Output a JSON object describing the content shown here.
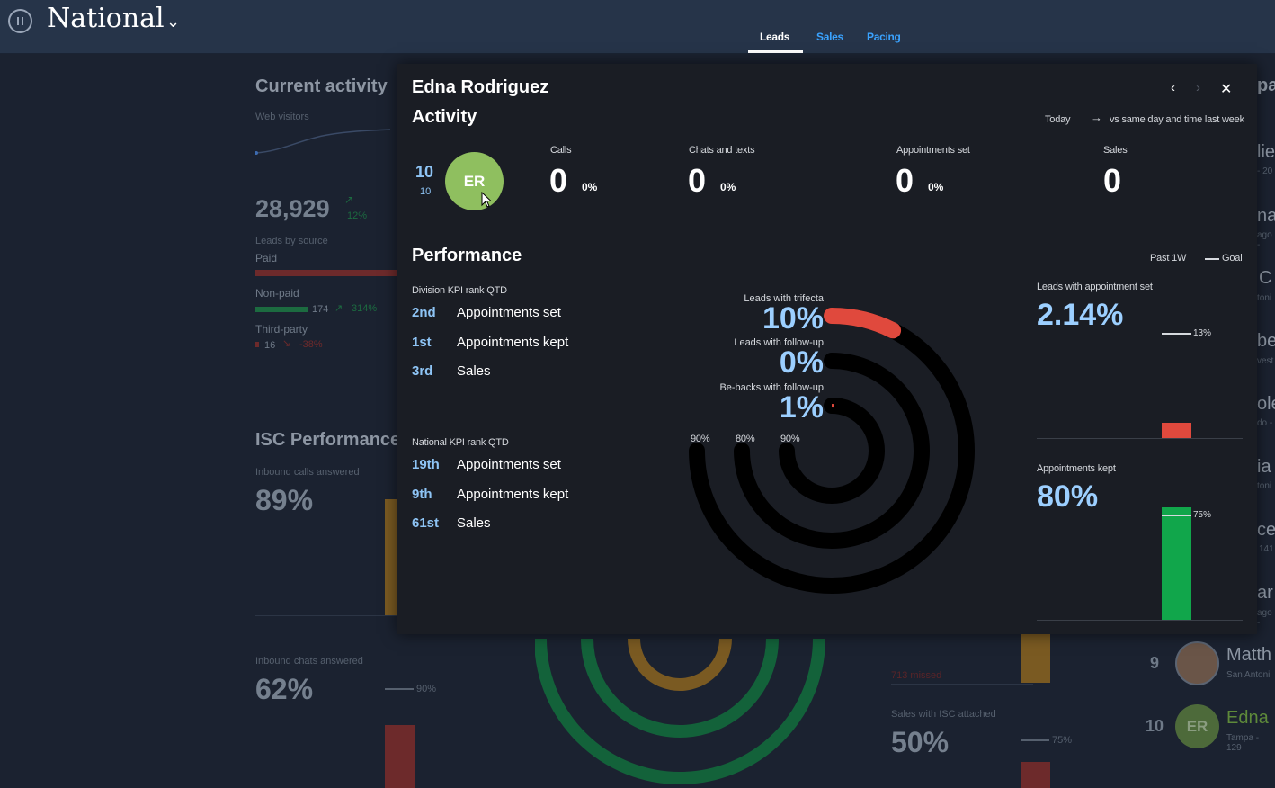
{
  "header": {
    "region": "National",
    "tabs": [
      {
        "label": "Leads",
        "active": true
      },
      {
        "label": "Sales",
        "active": false
      },
      {
        "label": "Pacing",
        "active": false
      }
    ]
  },
  "background": {
    "current_activity_title": "Current activity",
    "web_visitors_label": "Web visitors",
    "web_visitors_value": "28,929",
    "web_visitors_change": "12%",
    "leads_by_source_label": "Leads by source",
    "sources": [
      {
        "name": "Paid",
        "value": "",
        "change": ""
      },
      {
        "name": "Non-paid",
        "value": "174",
        "change": "314%"
      },
      {
        "name": "Third-party",
        "value": "16",
        "change": "-38%"
      }
    ],
    "isc_title": "ISC Performance",
    "inbound_calls_label": "Inbound calls answered",
    "inbound_calls_value": "89%",
    "inbound_chats_label": "Inbound chats answered",
    "inbound_chats_value": "62%",
    "inbound_chats_goal": "90%",
    "missed_label": "713 missed",
    "sales_isc_label": "Sales with ISC attached",
    "sales_isc_value": "50%",
    "sales_isc_goal": "75%",
    "right_fragments": [
      "pa",
      "lie",
      "- 20",
      "na",
      "ago -",
      "C",
      "toni",
      "be",
      "vest",
      "ole",
      "do -",
      "ia",
      "toni",
      "cee",
      "141",
      "ar",
      "ago -"
    ],
    "leaderboard": [
      {
        "rank": "9",
        "name": "Matth",
        "sub": "San Antoni",
        "initials": ""
      },
      {
        "rank": "10",
        "name": "Edna",
        "sub": "Tampa - 129",
        "initials": "ER"
      }
    ]
  },
  "modal": {
    "person_name": "Edna Rodriguez",
    "activity_title": "Activity",
    "today_label": "Today",
    "compare_label": "vs same day and time last week",
    "rank": "10",
    "rank_sub": "10",
    "initials": "ER",
    "avatar_color": "#8fbf5f",
    "metrics": [
      {
        "label": "Calls",
        "value": "0",
        "pct": "0%"
      },
      {
        "label": "Chats and texts",
        "value": "0",
        "pct": "0%"
      },
      {
        "label": "Appointments set",
        "value": "0",
        "pct": "0%"
      },
      {
        "label": "Sales",
        "value": "0",
        "pct": ""
      }
    ],
    "performance_title": "Performance",
    "legend_past": "Past 1W",
    "legend_goal": "Goal",
    "division_label": "Division KPI rank QTD",
    "division_ranks": [
      {
        "rank": "2nd",
        "name": "Appointments set"
      },
      {
        "rank": "1st",
        "name": "Appointments kept"
      },
      {
        "rank": "3rd",
        "name": "Sales"
      }
    ],
    "national_label": "National KPI rank QTD",
    "national_ranks": [
      {
        "rank": "19th",
        "name": "Appointments set"
      },
      {
        "rank": "9th",
        "name": "Appointments kept"
      },
      {
        "rank": "61st",
        "name": "Sales"
      }
    ],
    "rings": [
      {
        "label": "Leads with trifecta",
        "value": "10%",
        "fraction": 0.1,
        "goal": "90%",
        "color": "#e0493d"
      },
      {
        "label": "Leads with follow-up",
        "value": "0%",
        "fraction": 0.0,
        "goal": "80%",
        "color": "#e0493d"
      },
      {
        "label": "Be-backs with follow-up",
        "value": "1%",
        "fraction": 0.01,
        "goal": "90%",
        "color": "#e0493d"
      }
    ],
    "appt_set_label": "Leads with appointment set",
    "appt_set_value": "2.14%",
    "appt_set_goal": "13%",
    "appt_kept_label": "Appointments kept",
    "appt_kept_value": "80%",
    "appt_kept_goal": "75%",
    "colors": {
      "red": "#e0493d",
      "green": "#11a64b",
      "blue": "#9ccfff"
    }
  }
}
